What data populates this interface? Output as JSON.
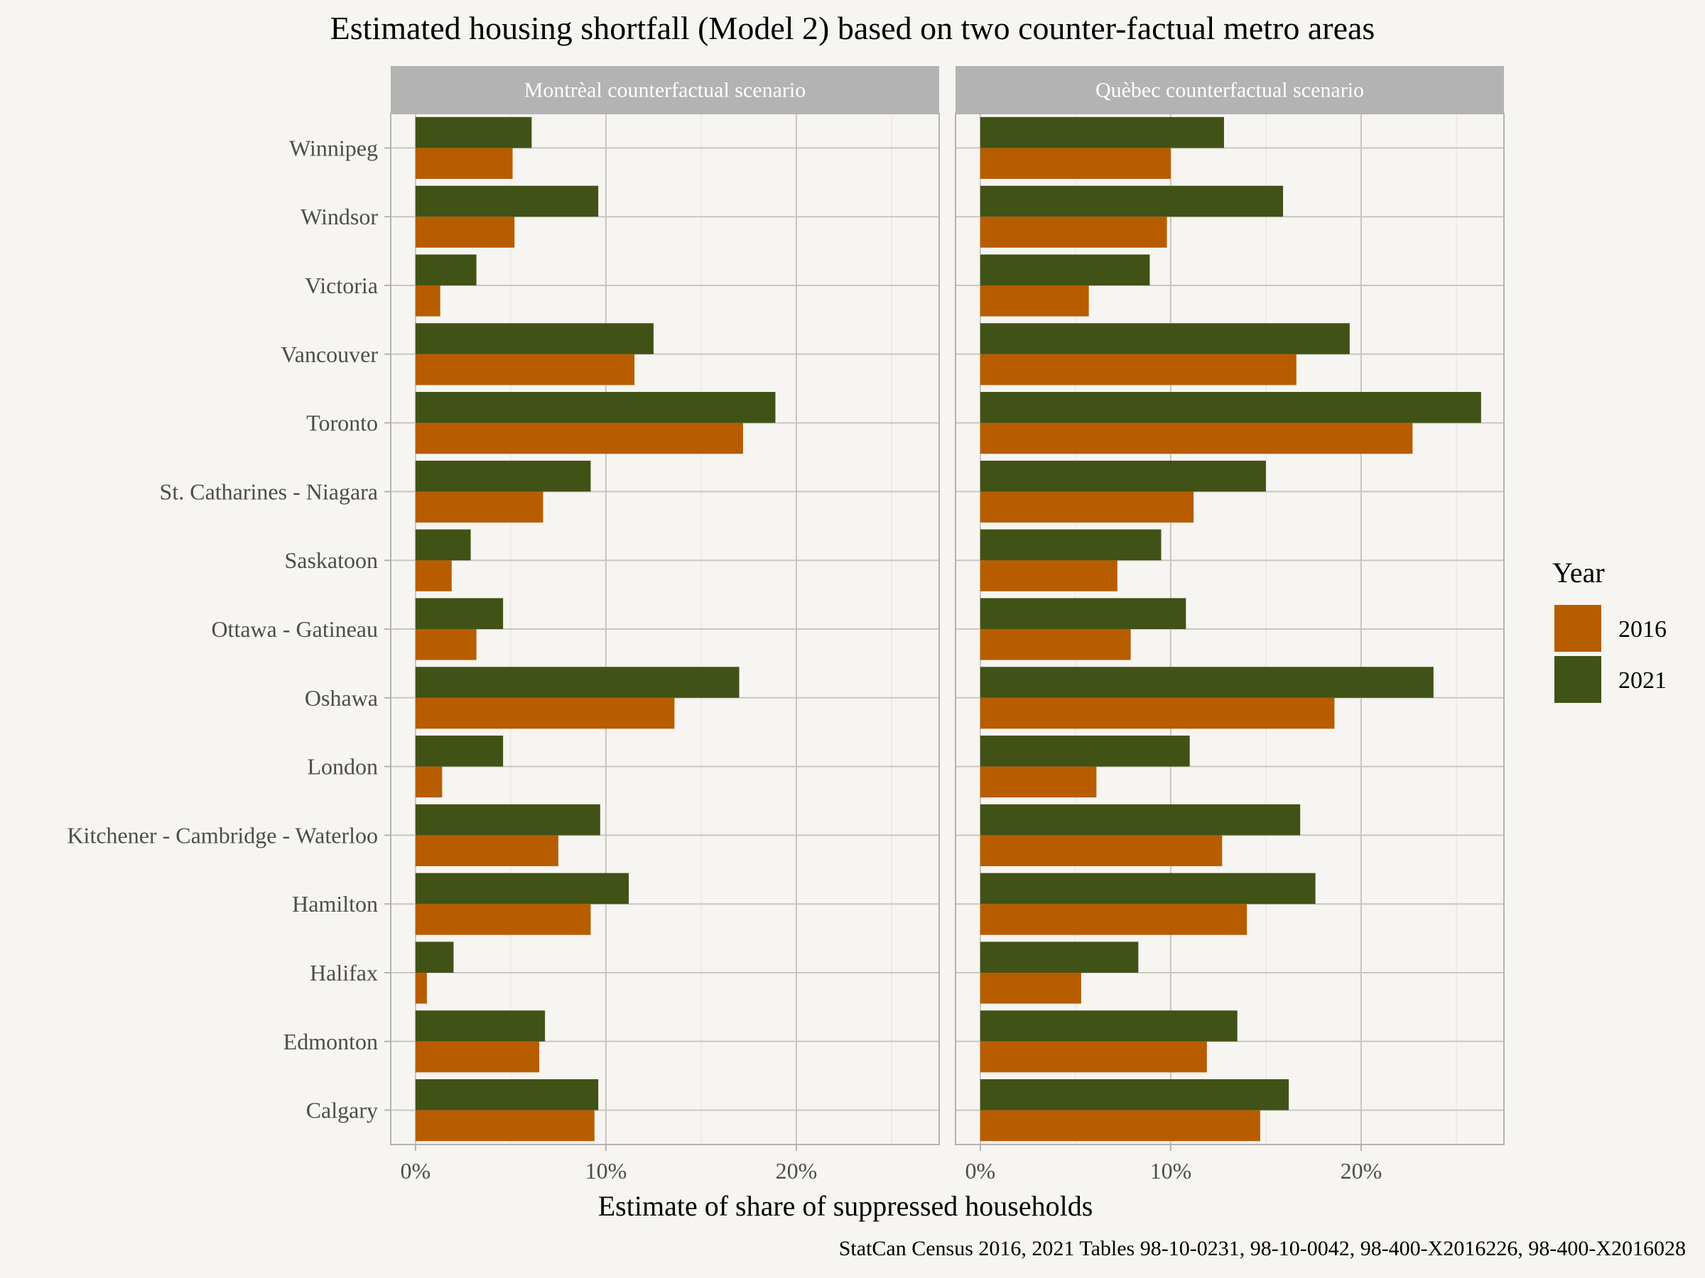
{
  "chart_data": {
    "type": "bar",
    "orientation": "horizontal",
    "title": "Estimated housing shortfall (Model 2) based on two counter-factual metro areas",
    "xlabel": "Estimate of share of suppressed households",
    "ylabel": "",
    "caption": "StatCan Census 2016, 2021 Tables 98-10-0231, 98-10-0042, 98-400-X2016226, 98-400-X2016028",
    "xlim": [
      -0.013,
      0.275
    ],
    "x_ticks": [
      0,
      0.1,
      0.2
    ],
    "x_tick_labels": [
      "0%",
      "10%",
      "20%"
    ],
    "grid": true,
    "legend": {
      "title": "Year",
      "position": "right",
      "entries": [
        {
          "label": "2016",
          "color": "#b85c00"
        },
        {
          "label": "2021",
          "color": "#405215"
        }
      ]
    },
    "categories": [
      "Winnipeg",
      "Windsor",
      "Victoria",
      "Vancouver",
      "Toronto",
      "St. Catharines - Niagara",
      "Saskatoon",
      "Ottawa - Gatineau",
      "Oshawa",
      "London",
      "Kitchener - Cambridge - Waterloo",
      "Hamilton",
      "Halifax",
      "Edmonton",
      "Calgary"
    ],
    "panels": [
      {
        "label": "Montrèal counterfactual scenario",
        "series": [
          {
            "name": "2016",
            "values": [
              0.051,
              0.052,
              0.013,
              0.115,
              0.172,
              0.067,
              0.019,
              0.032,
              0.136,
              0.014,
              0.075,
              0.092,
              0.006,
              0.065,
              0.094
            ]
          },
          {
            "name": "2021",
            "values": [
              0.061,
              0.096,
              0.032,
              0.125,
              0.189,
              0.092,
              0.029,
              0.046,
              0.17,
              0.046,
              0.097,
              0.112,
              0.02,
              0.068,
              0.096
            ]
          }
        ]
      },
      {
        "label": "Quèbec counterfactual scenario",
        "series": [
          {
            "name": "2016",
            "values": [
              0.1,
              0.098,
              0.057,
              0.166,
              0.227,
              0.112,
              0.072,
              0.079,
              0.186,
              0.061,
              0.127,
              0.14,
              0.053,
              0.119,
              0.147
            ]
          },
          {
            "name": "2021",
            "values": [
              0.128,
              0.159,
              0.089,
              0.194,
              0.263,
              0.15,
              0.095,
              0.108,
              0.238,
              0.11,
              0.168,
              0.176,
              0.083,
              0.135,
              0.162
            ]
          }
        ]
      }
    ]
  }
}
